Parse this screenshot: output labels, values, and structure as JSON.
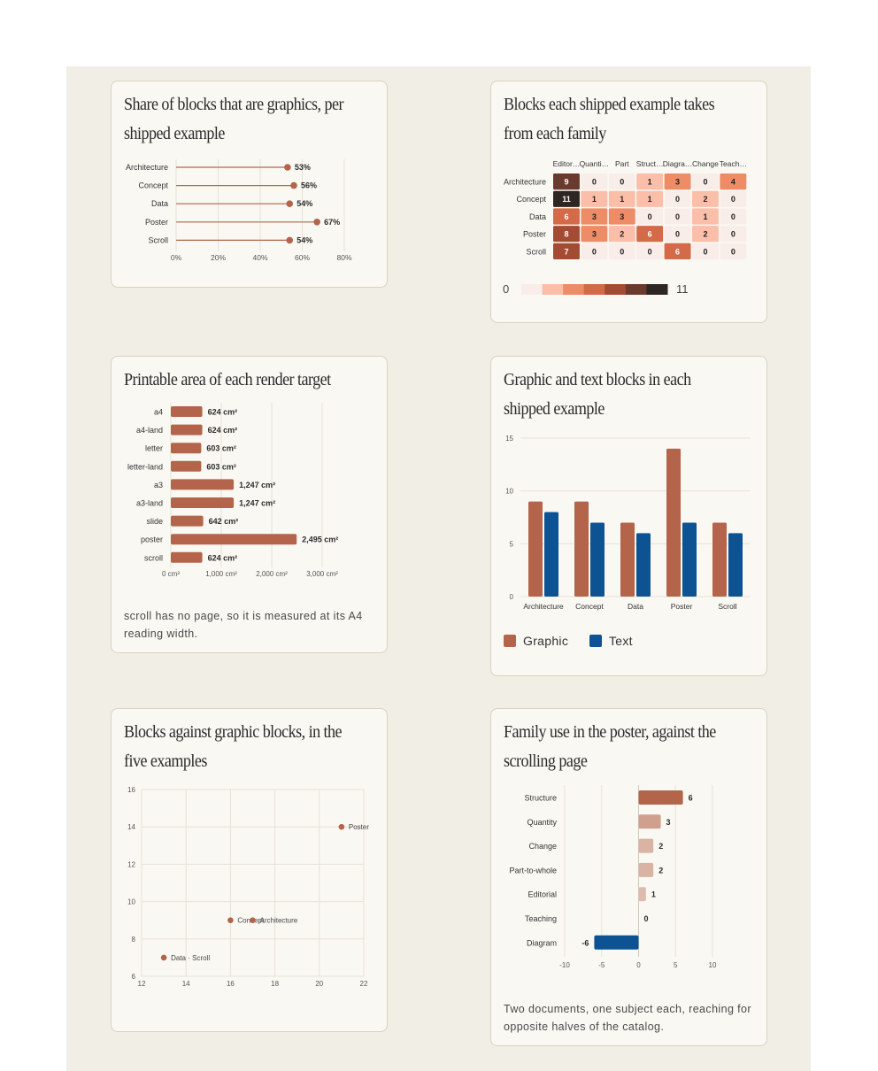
{
  "colors": {
    "graphic": "#b4644a",
    "text": "#0d5394",
    "heat_scale": [
      "#f9ede9",
      "#fbbfa9",
      "#ed8c67",
      "#d36a48",
      "#a44b33",
      "#6a3a2f",
      "#2e2623"
    ]
  },
  "lollipop": {
    "title": "Share of blocks that are graphics, per shipped example",
    "chart_data": {
      "type": "lollipop",
      "categories": [
        "Architecture",
        "Concept",
        "Data",
        "Poster",
        "Scroll"
      ],
      "values": [
        53,
        56,
        54,
        67,
        54
      ],
      "value_labels": [
        "53%",
        "56%",
        "54%",
        "67%",
        "54%"
      ],
      "xticks": [
        "0%",
        "20%",
        "40%",
        "60%",
        "80%"
      ],
      "xlim": [
        0,
        80
      ],
      "grid": true
    }
  },
  "heatmap": {
    "title": "Blocks each shipped example takes from each family",
    "chart_data": {
      "type": "heatmap",
      "columns": [
        "Editor…",
        "Quanti…",
        "Part",
        "Struct…",
        "Diagra…",
        "Change",
        "Teach…"
      ],
      "rows": [
        "Architecture",
        "Concept",
        "Data",
        "Poster",
        "Scroll"
      ],
      "values": [
        [
          9,
          0,
          0,
          1,
          3,
          0,
          4
        ],
        [
          11,
          1,
          1,
          1,
          0,
          2,
          0
        ],
        [
          6,
          3,
          3,
          0,
          0,
          1,
          0
        ],
        [
          8,
          3,
          2,
          6,
          0,
          2,
          0
        ],
        [
          7,
          0,
          0,
          0,
          6,
          0,
          0
        ]
      ],
      "scale_min": "0",
      "scale_max": "11",
      "range": [
        0,
        11
      ]
    }
  },
  "printable": {
    "title": "Printable area of each render target",
    "note": "scroll has no page, so it is measured at its A4 reading width.",
    "chart_data": {
      "type": "bar",
      "orientation": "horizontal",
      "categories": [
        "a4",
        "a4-land",
        "letter",
        "letter-land",
        "a3",
        "a3-land",
        "slide",
        "poster",
        "scroll"
      ],
      "values": [
        624,
        624,
        603,
        603,
        1247,
        1247,
        642,
        2495,
        624
      ],
      "value_labels": [
        "624 cm²",
        "624 cm²",
        "603 cm²",
        "603 cm²",
        "1,247 cm²",
        "1,247 cm²",
        "642 cm²",
        "2,495 cm²",
        "624 cm²"
      ],
      "xticks": [
        "0 cm²",
        "1,000 cm²",
        "2,000 cm²",
        "3,000 cm²"
      ],
      "xlim": [
        0,
        3000
      ],
      "grid": true
    }
  },
  "grouped": {
    "title": "Graphic and text blocks in each shipped example",
    "chart_data": {
      "type": "bar",
      "categories": [
        "Architecture",
        "Concept",
        "Data",
        "Poster",
        "Scroll"
      ],
      "series": [
        {
          "name": "Graphic",
          "values": [
            9,
            9,
            7,
            14,
            7
          ]
        },
        {
          "name": "Text",
          "values": [
            8,
            7,
            6,
            7,
            6
          ]
        }
      ],
      "yticks": [
        "0",
        "5",
        "10",
        "15"
      ],
      "ylim": [
        0,
        15
      ],
      "grid": true,
      "legend": "bottom-left"
    }
  },
  "scatter": {
    "title": "Blocks against graphic blocks, in the five examples",
    "chart_data": {
      "type": "scatter",
      "points": [
        {
          "x": 21,
          "y": 14,
          "label": "Poster"
        },
        {
          "x": 16,
          "y": 9,
          "label": "Concept"
        },
        {
          "x": 17,
          "y": 9,
          "label": "Architecture"
        },
        {
          "x": 13,
          "y": 7,
          "label": "Data · Scroll"
        }
      ],
      "xticks": [
        "12",
        "14",
        "16",
        "18",
        "20",
        "22"
      ],
      "yticks": [
        "6",
        "8",
        "10",
        "12",
        "14",
        "16"
      ],
      "xlim": [
        12,
        22
      ],
      "ylim": [
        6,
        16
      ],
      "grid": true
    }
  },
  "diverging": {
    "title": "Family use in the poster, against the scrolling page",
    "note": "Two documents, one subject each, reaching for opposite halves of the catalog.",
    "chart_data": {
      "type": "bar",
      "orientation": "horizontal",
      "categories": [
        "Structure",
        "Quantity",
        "Change",
        "Part-to-whole",
        "Editorial",
        "Teaching",
        "Diagram"
      ],
      "values": [
        6,
        3,
        2,
        2,
        1,
        0,
        -6
      ],
      "value_labels": [
        "6",
        "3",
        "2",
        "2",
        "1",
        "0",
        "-6"
      ],
      "xticks": [
        "-10",
        "-5",
        "0",
        "5",
        "10"
      ],
      "xlim": [
        -10,
        10
      ],
      "grid": true
    }
  }
}
